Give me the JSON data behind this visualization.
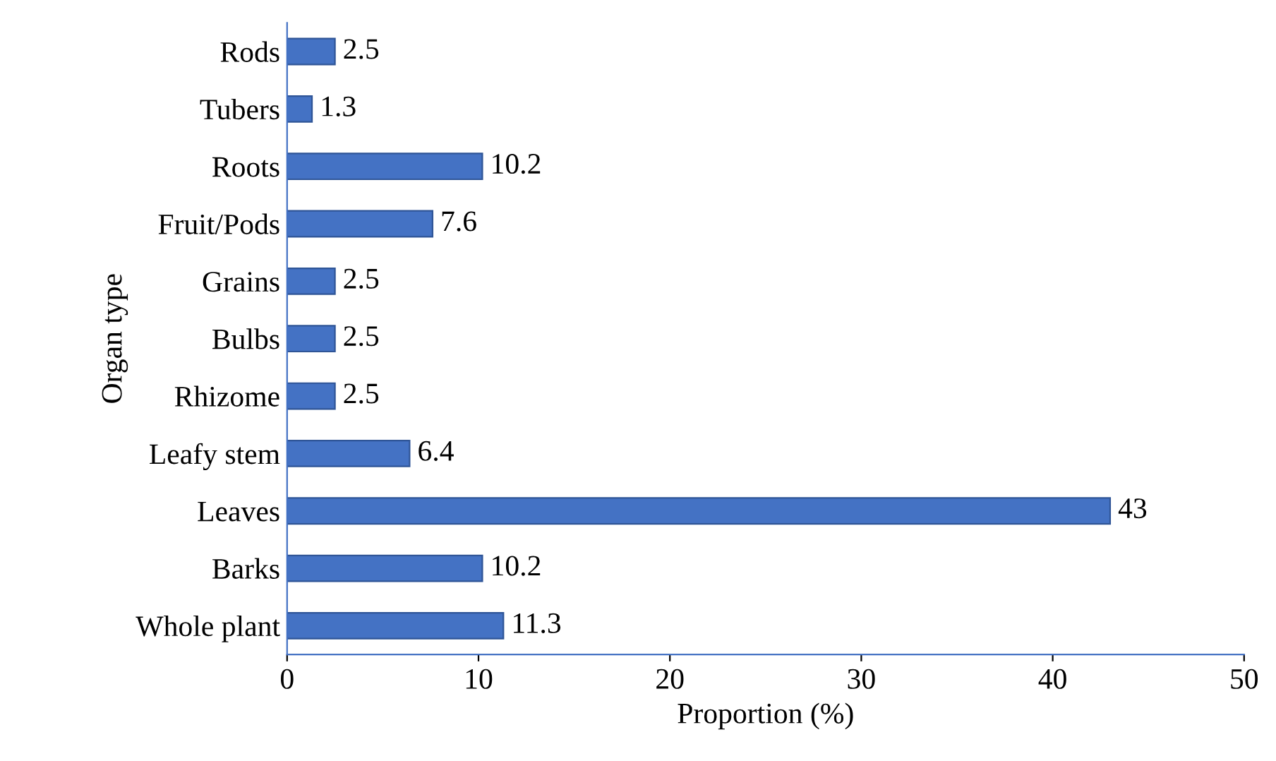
{
  "chart_data": {
    "type": "bar",
    "orientation": "horizontal",
    "xlabel": "Proportion (%)",
    "ylabel": "Organ type",
    "categories": [
      "Rods",
      "Tubers",
      "Roots",
      "Fruit/Pods",
      "Grains",
      "Bulbs",
      "Rhizome",
      "Leafy stem",
      "Leaves",
      "Barks",
      "Whole plant"
    ],
    "values": [
      2.5,
      1.3,
      10.2,
      7.6,
      2.5,
      2.5,
      2.5,
      6.4,
      43,
      10.2,
      11.3
    ],
    "color": "#4472c4",
    "xlim": [
      0,
      50
    ],
    "xticks": [
      0,
      10,
      20,
      30,
      40,
      50
    ],
    "data_labels": true,
    "grid": false
  }
}
